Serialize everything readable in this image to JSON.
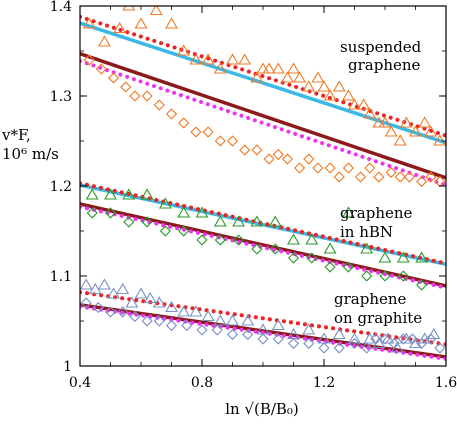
{
  "chart_data": {
    "type": "scatter",
    "title": "",
    "xlabel": "ln √(B/B₀)",
    "ylabel_line1": "v*F,",
    "ylabel_line2": "10⁶ m/s",
    "xlim": [
      0.4,
      1.6
    ],
    "ylim": [
      1.0,
      1.4
    ],
    "xticks": [
      "0.4",
      "0.8",
      "1.2",
      "1.6"
    ],
    "yticks": [
      "1",
      "1.1",
      "1.2",
      "1.3",
      "1.4"
    ],
    "grid": false,
    "annotations": [
      {
        "text": "suspended",
        "group": "suspended"
      },
      {
        "text": "graphene",
        "group": "suspended"
      },
      {
        "text": "graphene",
        "group": "hbn"
      },
      {
        "text": "in hBN",
        "group": "hbn"
      },
      {
        "text": "graphene",
        "group": "graphite"
      },
      {
        "text": "on graphite",
        "group": "graphite"
      }
    ],
    "colors": {
      "cyan_line": "#3bb8e6",
      "darkred_line": "#8b1a1a",
      "red_dots": "#ee2222",
      "magenta_dots": "#ee33ee",
      "orange": "#f07a24",
      "green": "#2a9a2a",
      "blue": "#7890c8"
    },
    "lines": [
      {
        "group": "suspended",
        "style": "cyan",
        "x": [
          0.4,
          1.6
        ],
        "y": [
          1.381,
          1.248
        ]
      },
      {
        "group": "suspended",
        "style": "red-dotted",
        "x": [
          0.4,
          1.6
        ],
        "y": [
          1.388,
          1.256
        ]
      },
      {
        "group": "suspended",
        "style": "darkred",
        "x": [
          0.4,
          1.6
        ],
        "y": [
          1.347,
          1.209
        ]
      },
      {
        "group": "suspended",
        "style": "magenta-dotted",
        "x": [
          0.4,
          1.6
        ],
        "y": [
          1.339,
          1.201
        ]
      },
      {
        "group": "hbn",
        "style": "cyan",
        "x": [
          0.4,
          1.6
        ],
        "y": [
          1.201,
          1.113
        ]
      },
      {
        "group": "hbn",
        "style": "red-dotted",
        "x": [
          0.4,
          1.6
        ],
        "y": [
          1.203,
          1.114
        ]
      },
      {
        "group": "hbn",
        "style": "darkred",
        "x": [
          0.4,
          1.6
        ],
        "y": [
          1.18,
          1.089
        ]
      },
      {
        "group": "hbn",
        "style": "magenta-dotted",
        "x": [
          0.4,
          1.6
        ],
        "y": [
          1.177,
          1.087
        ]
      },
      {
        "group": "graphite",
        "style": "red-dotted",
        "x": [
          0.4,
          1.6
        ],
        "y": [
          1.082,
          1.024
        ]
      },
      {
        "group": "graphite",
        "style": "darkred",
        "x": [
          0.4,
          1.6
        ],
        "y": [
          1.068,
          1.01
        ]
      },
      {
        "group": "graphite",
        "style": "magenta-dotted",
        "x": [
          0.4,
          1.6
        ],
        "y": [
          1.066,
          1.008
        ]
      }
    ],
    "series": [
      {
        "marker": "triangle",
        "color": "orange",
        "x": [
          0.43,
          0.48,
          0.53,
          0.56,
          0.6,
          0.65,
          0.7,
          0.74,
          0.78,
          0.82,
          0.86,
          0.9,
          0.94,
          0.98,
          1.0,
          1.02,
          1.05,
          1.08,
          1.1,
          1.12,
          1.15,
          1.18,
          1.2,
          1.22,
          1.25,
          1.28,
          1.3,
          1.33,
          1.35,
          1.38,
          1.4,
          1.42,
          1.45,
          1.47,
          1.5,
          1.53,
          1.55,
          1.58
        ],
        "y": [
          1.38,
          1.36,
          1.375,
          1.4,
          1.38,
          1.395,
          1.38,
          1.35,
          1.34,
          1.34,
          1.33,
          1.34,
          1.34,
          1.32,
          1.33,
          1.33,
          1.33,
          1.32,
          1.33,
          1.32,
          1.31,
          1.32,
          1.31,
          1.3,
          1.31,
          1.3,
          1.29,
          1.29,
          1.28,
          1.27,
          1.27,
          1.26,
          1.25,
          1.27,
          1.26,
          1.27,
          1.26,
          1.25
        ]
      },
      {
        "marker": "diamond",
        "color": "orange",
        "x": [
          0.43,
          0.47,
          0.51,
          0.55,
          0.58,
          0.62,
          0.66,
          0.7,
          0.74,
          0.78,
          0.82,
          0.86,
          0.9,
          0.94,
          0.98,
          1.02,
          1.05,
          1.08,
          1.12,
          1.15,
          1.18,
          1.22,
          1.25,
          1.28,
          1.32,
          1.35,
          1.38,
          1.42,
          1.45,
          1.48,
          1.52,
          1.55,
          1.58
        ],
        "y": [
          1.34,
          1.33,
          1.32,
          1.31,
          1.3,
          1.3,
          1.29,
          1.28,
          1.27,
          1.26,
          1.26,
          1.25,
          1.25,
          1.24,
          1.24,
          1.23,
          1.235,
          1.23,
          1.22,
          1.23,
          1.22,
          1.22,
          1.21,
          1.22,
          1.21,
          1.22,
          1.21,
          1.215,
          1.21,
          1.21,
          1.205,
          1.21,
          1.205
        ]
      },
      {
        "marker": "triangle",
        "color": "green",
        "x": [
          0.44,
          0.5,
          0.56,
          0.62,
          0.68,
          0.74,
          0.8,
          0.86,
          0.92,
          0.98,
          1.04,
          1.1,
          1.16,
          1.22,
          1.28,
          1.34,
          1.4,
          1.46,
          1.52
        ],
        "y": [
          1.19,
          1.19,
          1.19,
          1.19,
          1.18,
          1.17,
          1.17,
          1.16,
          1.16,
          1.16,
          1.16,
          1.14,
          1.14,
          1.13,
          1.17,
          1.13,
          1.12,
          1.12,
          1.12
        ]
      },
      {
        "marker": "diamond",
        "color": "green",
        "x": [
          0.44,
          0.5,
          0.56,
          0.62,
          0.68,
          0.74,
          0.8,
          0.86,
          0.92,
          0.98,
          1.04,
          1.1,
          1.16,
          1.22,
          1.28,
          1.34,
          1.4,
          1.46,
          1.52
        ],
        "y": [
          1.17,
          1.17,
          1.16,
          1.16,
          1.15,
          1.15,
          1.14,
          1.14,
          1.14,
          1.13,
          1.13,
          1.12,
          1.12,
          1.11,
          1.11,
          1.1,
          1.1,
          1.1,
          1.09
        ]
      },
      {
        "marker": "triangle",
        "color": "blue",
        "x": [
          0.42,
          0.45,
          0.48,
          0.51,
          0.54,
          0.57,
          0.6,
          0.63,
          0.66,
          0.7,
          0.74,
          0.78,
          0.82,
          0.86,
          0.9,
          0.95,
          1.0,
          1.05,
          1.1,
          1.15,
          1.2,
          1.25,
          1.3,
          1.35,
          1.38,
          1.41,
          1.44,
          1.47,
          1.5,
          1.53,
          1.56
        ],
        "y": [
          1.09,
          1.085,
          1.09,
          1.08,
          1.085,
          1.07,
          1.08,
          1.075,
          1.07,
          1.065,
          1.06,
          1.06,
          1.055,
          1.05,
          1.05,
          1.05,
          1.04,
          1.045,
          1.035,
          1.04,
          1.03,
          1.035,
          1.03,
          1.03,
          1.025,
          1.03,
          1.02,
          1.03,
          1.025,
          1.03,
          1.035
        ]
      },
      {
        "marker": "diamond",
        "color": "blue",
        "x": [
          0.42,
          0.46,
          0.5,
          0.54,
          0.58,
          0.62,
          0.66,
          0.7,
          0.75,
          0.8,
          0.85,
          0.9,
          0.95,
          1.0,
          1.05,
          1.1,
          1.15,
          1.2,
          1.25,
          1.3,
          1.34,
          1.37,
          1.4,
          1.43,
          1.46,
          1.49,
          1.52,
          1.55,
          1.58
        ],
        "y": [
          1.07,
          1.065,
          1.06,
          1.06,
          1.055,
          1.05,
          1.05,
          1.045,
          1.045,
          1.04,
          1.04,
          1.035,
          1.035,
          1.03,
          1.03,
          1.025,
          1.025,
          1.02,
          1.02,
          1.025,
          1.02,
          1.03,
          1.03,
          1.025,
          1.03,
          1.03,
          1.025,
          1.03,
          1.02
        ]
      }
    ]
  }
}
